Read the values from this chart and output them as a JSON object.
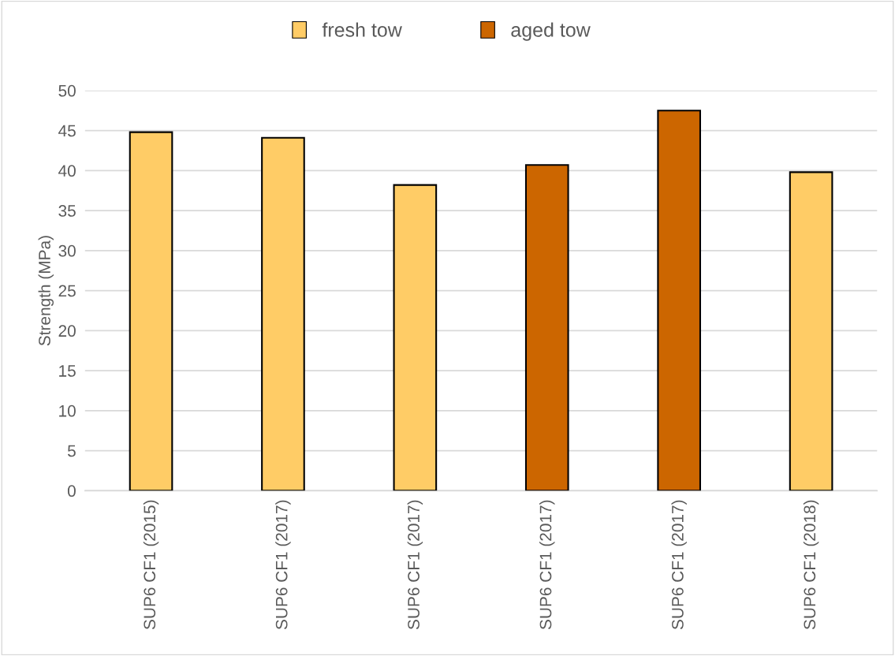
{
  "chart_data": {
    "type": "bar",
    "ylabel": "Strength (MPa)",
    "categories": [
      "SUP6 CF1 (2015)",
      "SUP6 CF1 (2017)",
      "SUP6 CF1 (2017)",
      "SUP6 CF1 (2017)",
      "SUP6 CF1 (2017)",
      "SUP6 CF1 (2018)"
    ],
    "series": [
      {
        "name": "fresh tow",
        "color": "#ffcc66",
        "values": [
          44.8,
          44.1,
          38.2,
          null,
          null,
          39.8
        ]
      },
      {
        "name": "aged tow",
        "color": "#cc6600",
        "values": [
          null,
          null,
          null,
          40.7,
          47.5,
          null
        ]
      }
    ],
    "stacked": true,
    "ylim": [
      0,
      50
    ],
    "yticks": [
      0,
      5,
      10,
      15,
      20,
      25,
      30,
      35,
      40,
      45,
      50
    ],
    "grid": "y",
    "legend": "top"
  }
}
